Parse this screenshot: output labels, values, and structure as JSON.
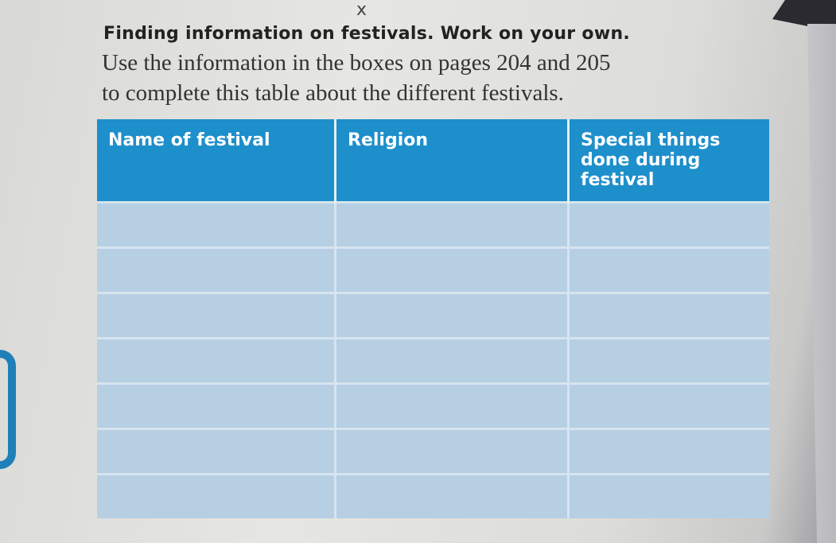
{
  "heading": "Finding information on festivals. Work on your own.",
  "instructions": [
    "Use the information in the boxes on pages 204 and 205",
    "to complete this table about the different festivals."
  ],
  "handwritten_mark": "x",
  "table": {
    "headers": [
      "Name of festival",
      "Religion",
      "Special things done during festival"
    ],
    "rows": [
      [
        "",
        "",
        ""
      ],
      [
        "",
        "",
        ""
      ],
      [
        "",
        "",
        ""
      ],
      [
        "",
        "",
        ""
      ],
      [
        "",
        "",
        ""
      ],
      [
        "",
        "",
        ""
      ],
      [
        "",
        "",
        ""
      ]
    ]
  },
  "colors": {
    "header": "#1d8fcb",
    "cell": "#b6cfe3"
  }
}
